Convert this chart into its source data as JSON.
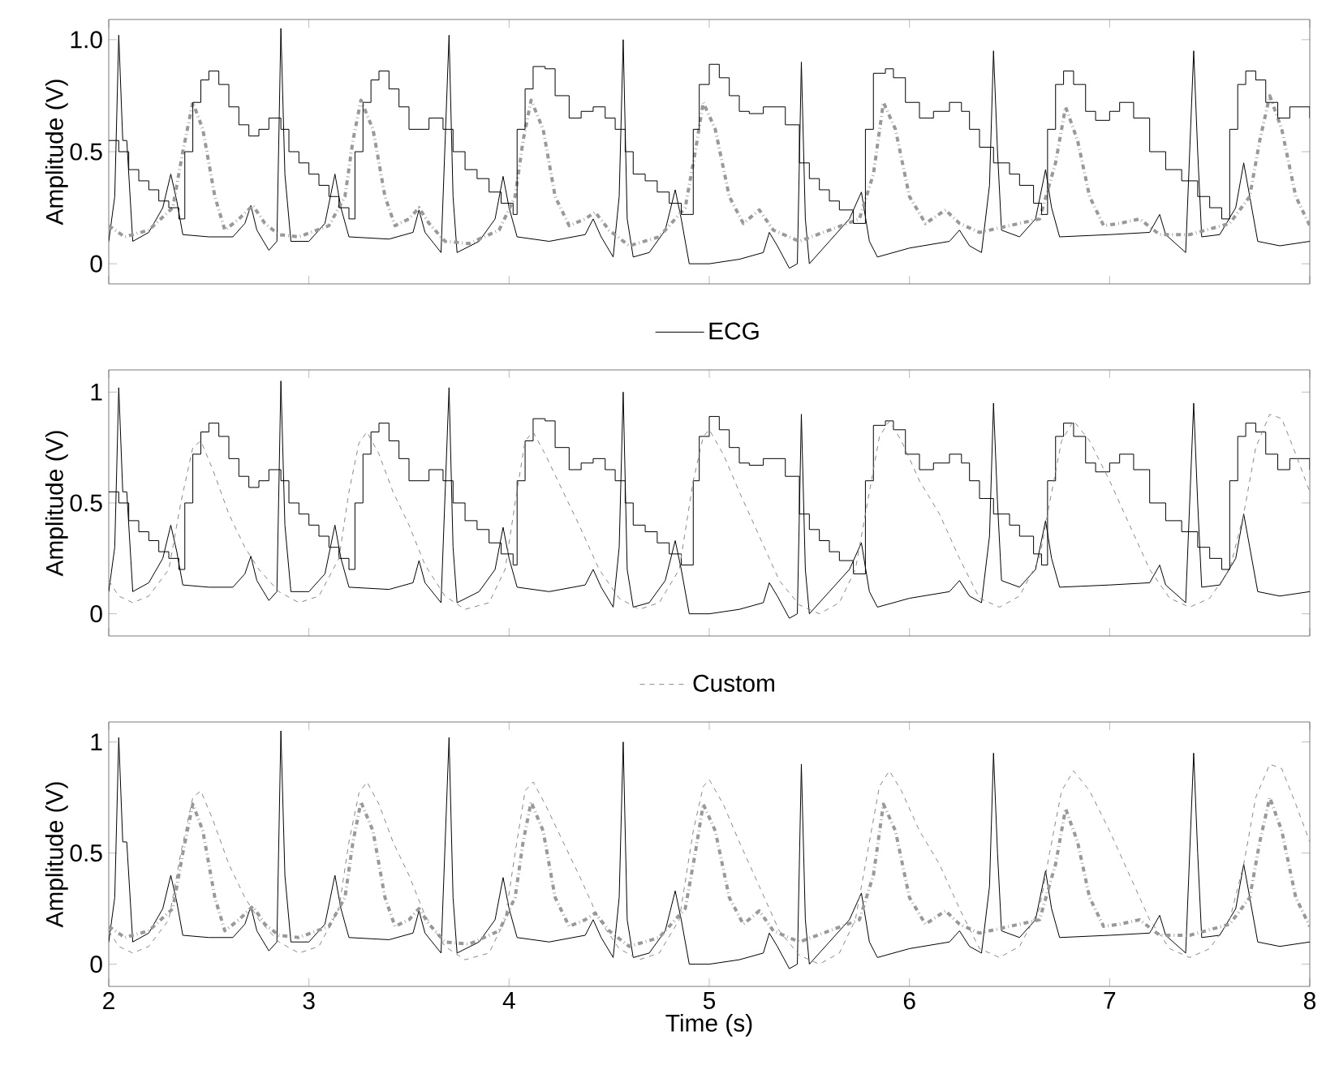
{
  "chart_data": [
    {
      "type": "line",
      "ylabel": "Amplitude (V)",
      "xlim": [
        2,
        8
      ],
      "ylim": [
        -0.09,
        1.09
      ],
      "xticks": [
        2,
        3,
        4,
        5,
        6,
        7,
        8
      ],
      "yticks": [
        0,
        0.5,
        {
          "value": 1,
          "label": "1.0"
        }
      ],
      "tick_labels": "y",
      "legend": "bottom",
      "series": [
        {
          "name": "ECG",
          "type": "line",
          "color": "#000000",
          "line_style": "solid",
          "x": [
            2.0,
            2.03,
            2.05,
            2.07,
            2.09,
            2.12,
            2.2,
            2.27,
            2.31,
            2.34,
            2.37,
            2.5,
            2.62,
            2.68,
            2.71,
            2.74,
            2.8,
            2.84,
            2.86,
            2.88,
            2.91,
            3.0,
            3.08,
            3.13,
            3.16,
            3.2,
            3.4,
            3.52,
            3.55,
            3.58,
            3.66,
            3.7,
            3.72,
            3.74,
            3.85,
            3.93,
            3.97,
            4.0,
            4.04,
            4.2,
            4.38,
            4.42,
            4.46,
            4.52,
            4.55,
            4.57,
            4.59,
            4.62,
            4.7,
            4.78,
            4.83,
            4.86,
            4.9,
            5.0,
            5.15,
            5.27,
            5.3,
            5.34,
            5.4,
            5.44,
            5.46,
            5.48,
            5.5,
            5.6,
            5.7,
            5.76,
            5.8,
            5.84,
            6.0,
            6.2,
            6.25,
            6.3,
            6.36,
            6.4,
            6.42,
            6.44,
            6.46,
            6.55,
            6.63,
            6.68,
            6.71,
            6.75,
            7.0,
            7.2,
            7.25,
            7.28,
            7.38,
            7.42,
            7.44,
            7.46,
            7.55,
            7.63,
            7.67,
            7.7,
            7.74,
            7.85,
            8.0
          ],
          "values": [
            0.1,
            0.3,
            1.02,
            0.55,
            0.55,
            0.1,
            0.14,
            0.25,
            0.4,
            0.28,
            0.13,
            0.12,
            0.12,
            0.18,
            0.26,
            0.15,
            0.06,
            0.1,
            1.05,
            0.4,
            0.1,
            0.1,
            0.18,
            0.4,
            0.25,
            0.12,
            0.11,
            0.14,
            0.24,
            0.14,
            0.05,
            1.02,
            0.3,
            0.05,
            0.1,
            0.2,
            0.39,
            0.25,
            0.12,
            0.1,
            0.13,
            0.2,
            0.12,
            0.03,
            0.3,
            1.0,
            0.2,
            0.03,
            0.05,
            0.15,
            0.33,
            0.2,
            0.0,
            0.0,
            0.02,
            0.05,
            0.14,
            0.08,
            -0.02,
            0.0,
            0.9,
            0.2,
            0.0,
            0.1,
            0.2,
            0.32,
            0.1,
            0.03,
            0.07,
            0.1,
            0.15,
            0.08,
            0.05,
            0.35,
            0.95,
            0.5,
            0.15,
            0.12,
            0.2,
            0.42,
            0.25,
            0.12,
            0.13,
            0.14,
            0.22,
            0.13,
            0.05,
            0.95,
            0.5,
            0.12,
            0.13,
            0.25,
            0.45,
            0.3,
            0.1,
            0.08,
            0.1
          ]
        },
        {
          "type": "line",
          "color": "#999999",
          "line_style": "dashdot",
          "x": [
            2.0,
            2.08,
            2.2,
            2.32,
            2.37,
            2.42,
            2.47,
            2.53,
            2.58,
            2.65,
            2.72,
            2.78,
            2.85,
            2.95,
            3.1,
            3.18,
            3.22,
            3.26,
            3.32,
            3.38,
            3.43,
            3.5,
            3.55,
            3.6,
            3.68,
            3.8,
            3.95,
            4.03,
            4.07,
            4.11,
            4.17,
            4.23,
            4.3,
            4.38,
            4.43,
            4.5,
            4.6,
            4.75,
            4.88,
            4.93,
            4.97,
            5.03,
            5.1,
            5.17,
            5.25,
            5.32,
            5.45,
            5.6,
            5.75,
            5.82,
            5.87,
            5.93,
            6.0,
            6.08,
            6.18,
            6.25,
            6.35,
            6.5,
            6.65,
            6.73,
            6.78,
            6.84,
            6.9,
            6.97,
            7.05,
            7.15,
            7.25,
            7.4,
            7.6,
            7.7,
            7.75,
            7.8,
            7.86,
            7.93,
            8.0
          ],
          "values": [
            0.17,
            0.12,
            0.15,
            0.25,
            0.5,
            0.72,
            0.6,
            0.3,
            0.15,
            0.2,
            0.26,
            0.18,
            0.13,
            0.12,
            0.17,
            0.3,
            0.55,
            0.73,
            0.6,
            0.3,
            0.17,
            0.2,
            0.25,
            0.18,
            0.1,
            0.09,
            0.15,
            0.3,
            0.55,
            0.73,
            0.6,
            0.3,
            0.17,
            0.2,
            0.23,
            0.15,
            0.08,
            0.12,
            0.25,
            0.5,
            0.72,
            0.6,
            0.3,
            0.18,
            0.24,
            0.15,
            0.1,
            0.15,
            0.2,
            0.4,
            0.72,
            0.6,
            0.3,
            0.18,
            0.24,
            0.18,
            0.14,
            0.17,
            0.2,
            0.45,
            0.7,
            0.55,
            0.3,
            0.17,
            0.18,
            0.2,
            0.13,
            0.13,
            0.18,
            0.3,
            0.55,
            0.75,
            0.6,
            0.3,
            0.17
          ]
        },
        {
          "type": "step",
          "color": "#000000",
          "line_style": "solid",
          "x": [
            2.0,
            2.05,
            2.1,
            2.15,
            2.2,
            2.25,
            2.3,
            2.35,
            2.38,
            2.42,
            2.46,
            2.5,
            2.55,
            2.6,
            2.65,
            2.7,
            2.75,
            2.8,
            2.86,
            2.9,
            2.95,
            3.0,
            3.05,
            3.1,
            3.15,
            3.2,
            3.23,
            3.27,
            3.31,
            3.35,
            3.4,
            3.45,
            3.5,
            3.55,
            3.6,
            3.67,
            3.72,
            3.78,
            3.84,
            3.9,
            3.96,
            4.02,
            4.04,
            4.08,
            4.12,
            4.18,
            4.23,
            4.3,
            4.36,
            4.42,
            4.48,
            4.53,
            4.58,
            4.62,
            4.68,
            4.74,
            4.8,
            4.86,
            4.92,
            4.95,
            5.0,
            5.05,
            5.1,
            5.15,
            5.2,
            5.27,
            5.32,
            5.38,
            5.45,
            5.5,
            5.55,
            5.6,
            5.65,
            5.72,
            5.78,
            5.82,
            5.88,
            5.92,
            5.98,
            6.05,
            6.12,
            6.2,
            6.26,
            6.3,
            6.35,
            6.42,
            6.5,
            6.55,
            6.62,
            6.66,
            6.69,
            6.73,
            6.77,
            6.82,
            6.88,
            6.93,
            7.0,
            7.05,
            7.12,
            7.2,
            7.28,
            7.36,
            7.44,
            7.5,
            7.56,
            7.6,
            7.64,
            7.68,
            7.73,
            7.78,
            7.84,
            7.9,
            7.96,
            8.0
          ],
          "values": [
            0.55,
            0.5,
            0.42,
            0.37,
            0.33,
            0.28,
            0.25,
            0.2,
            0.5,
            0.72,
            0.82,
            0.86,
            0.8,
            0.7,
            0.62,
            0.57,
            0.6,
            0.65,
            0.6,
            0.5,
            0.45,
            0.4,
            0.35,
            0.3,
            0.25,
            0.2,
            0.5,
            0.72,
            0.82,
            0.86,
            0.78,
            0.7,
            0.6,
            0.6,
            0.65,
            0.6,
            0.5,
            0.42,
            0.38,
            0.32,
            0.27,
            0.22,
            0.6,
            0.78,
            0.88,
            0.87,
            0.75,
            0.65,
            0.68,
            0.7,
            0.65,
            0.6,
            0.5,
            0.4,
            0.37,
            0.32,
            0.27,
            0.22,
            0.6,
            0.8,
            0.89,
            0.83,
            0.75,
            0.68,
            0.67,
            0.7,
            0.7,
            0.62,
            0.45,
            0.38,
            0.33,
            0.28,
            0.24,
            0.18,
            0.6,
            0.85,
            0.87,
            0.83,
            0.72,
            0.65,
            0.68,
            0.72,
            0.68,
            0.6,
            0.52,
            0.45,
            0.4,
            0.35,
            0.27,
            0.22,
            0.6,
            0.8,
            0.86,
            0.8,
            0.68,
            0.64,
            0.68,
            0.72,
            0.65,
            0.5,
            0.42,
            0.37,
            0.3,
            0.25,
            0.2,
            0.6,
            0.8,
            0.86,
            0.82,
            0.72,
            0.65,
            0.7,
            0.7,
            0.65
          ]
        }
      ]
    },
    {
      "type": "line",
      "ylabel": "Amplitude (V)",
      "xlim": [
        2,
        8
      ],
      "ylim": [
        -0.1,
        1.1
      ],
      "xticks": [
        2,
        3,
        4,
        5,
        6,
        7,
        8
      ],
      "yticks": [
        0,
        0.5,
        1
      ],
      "tick_labels": "y",
      "legend": "bottom",
      "series": [
        {
          "type": "line",
          "color": "#000000",
          "line_style": "solid",
          "x": [
            2.0,
            2.03,
            2.05,
            2.07,
            2.09,
            2.12,
            2.2,
            2.27,
            2.31,
            2.34,
            2.37,
            2.5,
            2.62,
            2.68,
            2.71,
            2.74,
            2.8,
            2.84,
            2.86,
            2.88,
            2.91,
            3.0,
            3.08,
            3.13,
            3.16,
            3.2,
            3.4,
            3.52,
            3.55,
            3.58,
            3.66,
            3.7,
            3.72,
            3.74,
            3.85,
            3.93,
            3.97,
            4.0,
            4.04,
            4.2,
            4.38,
            4.42,
            4.46,
            4.52,
            4.55,
            4.57,
            4.59,
            4.62,
            4.7,
            4.78,
            4.83,
            4.86,
            4.9,
            5.0,
            5.15,
            5.27,
            5.3,
            5.34,
            5.4,
            5.44,
            5.46,
            5.48,
            5.5,
            5.6,
            5.7,
            5.76,
            5.8,
            5.84,
            6.0,
            6.2,
            6.25,
            6.3,
            6.36,
            6.4,
            6.42,
            6.44,
            6.46,
            6.55,
            6.63,
            6.68,
            6.71,
            6.75,
            7.0,
            7.2,
            7.25,
            7.28,
            7.38,
            7.42,
            7.44,
            7.46,
            7.55,
            7.63,
            7.67,
            7.7,
            7.74,
            7.85,
            8.0
          ],
          "values": [
            0.1,
            0.3,
            1.02,
            0.55,
            0.55,
            0.1,
            0.14,
            0.25,
            0.4,
            0.28,
            0.13,
            0.12,
            0.12,
            0.18,
            0.26,
            0.15,
            0.06,
            0.1,
            1.05,
            0.4,
            0.1,
            0.1,
            0.18,
            0.4,
            0.25,
            0.12,
            0.11,
            0.14,
            0.24,
            0.14,
            0.05,
            1.02,
            0.3,
            0.05,
            0.1,
            0.2,
            0.39,
            0.25,
            0.12,
            0.1,
            0.13,
            0.2,
            0.12,
            0.03,
            0.3,
            1.0,
            0.2,
            0.03,
            0.05,
            0.15,
            0.33,
            0.2,
            0.0,
            0.0,
            0.02,
            0.05,
            0.14,
            0.08,
            -0.02,
            0.0,
            0.9,
            0.2,
            0.0,
            0.1,
            0.2,
            0.32,
            0.1,
            0.03,
            0.07,
            0.1,
            0.15,
            0.08,
            0.05,
            0.35,
            0.95,
            0.5,
            0.15,
            0.12,
            0.2,
            0.42,
            0.25,
            0.12,
            0.13,
            0.14,
            0.22,
            0.13,
            0.05,
            0.95,
            0.5,
            0.12,
            0.13,
            0.25,
            0.45,
            0.3,
            0.1,
            0.08,
            0.1
          ]
        },
        {
          "type": "step",
          "color": "#000000",
          "line_style": "solid",
          "x": [
            2.0,
            2.05,
            2.1,
            2.15,
            2.2,
            2.25,
            2.3,
            2.35,
            2.38,
            2.42,
            2.46,
            2.5,
            2.55,
            2.6,
            2.65,
            2.7,
            2.75,
            2.8,
            2.86,
            2.9,
            2.95,
            3.0,
            3.05,
            3.1,
            3.15,
            3.2,
            3.23,
            3.27,
            3.31,
            3.35,
            3.4,
            3.45,
            3.5,
            3.55,
            3.6,
            3.67,
            3.72,
            3.78,
            3.84,
            3.9,
            3.96,
            4.02,
            4.04,
            4.08,
            4.12,
            4.18,
            4.23,
            4.3,
            4.36,
            4.42,
            4.48,
            4.53,
            4.58,
            4.62,
            4.68,
            4.74,
            4.8,
            4.86,
            4.92,
            4.95,
            5.0,
            5.05,
            5.1,
            5.15,
            5.2,
            5.27,
            5.32,
            5.38,
            5.45,
            5.5,
            5.55,
            5.6,
            5.65,
            5.72,
            5.78,
            5.82,
            5.88,
            5.92,
            5.98,
            6.05,
            6.12,
            6.2,
            6.26,
            6.3,
            6.35,
            6.42,
            6.5,
            6.55,
            6.62,
            6.66,
            6.69,
            6.73,
            6.77,
            6.82,
            6.88,
            6.93,
            7.0,
            7.05,
            7.12,
            7.2,
            7.28,
            7.36,
            7.44,
            7.5,
            7.56,
            7.6,
            7.64,
            7.68,
            7.73,
            7.78,
            7.84,
            7.9,
            7.96,
            8.0
          ],
          "values": [
            0.55,
            0.5,
            0.42,
            0.37,
            0.33,
            0.28,
            0.25,
            0.2,
            0.5,
            0.72,
            0.82,
            0.86,
            0.8,
            0.7,
            0.62,
            0.57,
            0.6,
            0.65,
            0.6,
            0.5,
            0.45,
            0.4,
            0.35,
            0.3,
            0.25,
            0.2,
            0.5,
            0.72,
            0.82,
            0.86,
            0.78,
            0.7,
            0.6,
            0.6,
            0.65,
            0.6,
            0.5,
            0.42,
            0.38,
            0.32,
            0.27,
            0.22,
            0.6,
            0.78,
            0.88,
            0.87,
            0.75,
            0.65,
            0.68,
            0.7,
            0.65,
            0.6,
            0.5,
            0.4,
            0.37,
            0.32,
            0.27,
            0.22,
            0.6,
            0.8,
            0.89,
            0.83,
            0.75,
            0.68,
            0.67,
            0.7,
            0.7,
            0.62,
            0.45,
            0.38,
            0.33,
            0.28,
            0.24,
            0.18,
            0.6,
            0.85,
            0.87,
            0.83,
            0.72,
            0.65,
            0.68,
            0.72,
            0.68,
            0.6,
            0.52,
            0.45,
            0.4,
            0.35,
            0.27,
            0.22,
            0.6,
            0.8,
            0.86,
            0.8,
            0.68,
            0.64,
            0.68,
            0.72,
            0.65,
            0.5,
            0.42,
            0.37,
            0.3,
            0.25,
            0.2,
            0.6,
            0.8,
            0.86,
            0.82,
            0.72,
            0.65,
            0.7,
            0.7,
            0.65
          ]
        },
        {
          "name": "Custom",
          "type": "line",
          "color": "#888888",
          "line_style": "dashed",
          "x": [
            2.0,
            2.05,
            2.12,
            2.2,
            2.3,
            2.36,
            2.42,
            2.46,
            2.52,
            2.6,
            2.68,
            2.75,
            2.85,
            2.95,
            3.05,
            3.15,
            3.2,
            3.25,
            3.29,
            3.35,
            3.42,
            3.5,
            3.58,
            3.68,
            3.78,
            3.9,
            3.98,
            4.03,
            4.08,
            4.12,
            4.18,
            4.27,
            4.35,
            4.45,
            4.55,
            4.65,
            4.75,
            4.85,
            4.92,
            4.97,
            5.0,
            5.07,
            5.15,
            5.25,
            5.35,
            5.45,
            5.55,
            5.65,
            5.73,
            5.8,
            5.85,
            5.9,
            5.96,
            6.05,
            6.15,
            6.25,
            6.35,
            6.45,
            6.55,
            6.65,
            6.7,
            6.76,
            6.82,
            6.9,
            7.0,
            7.1,
            7.2,
            7.3,
            7.4,
            7.5,
            7.6,
            7.67,
            7.73,
            7.8,
            7.86,
            7.93,
            8.0
          ],
          "values": [
            0.15,
            0.08,
            0.05,
            0.08,
            0.2,
            0.5,
            0.75,
            0.78,
            0.65,
            0.45,
            0.3,
            0.2,
            0.1,
            0.05,
            0.08,
            0.25,
            0.55,
            0.77,
            0.82,
            0.72,
            0.55,
            0.4,
            0.22,
            0.08,
            0.02,
            0.05,
            0.2,
            0.5,
            0.78,
            0.82,
            0.72,
            0.55,
            0.4,
            0.2,
            0.07,
            0.02,
            0.05,
            0.2,
            0.6,
            0.8,
            0.83,
            0.72,
            0.55,
            0.35,
            0.15,
            0.04,
            0.0,
            0.05,
            0.2,
            0.55,
            0.8,
            0.87,
            0.78,
            0.6,
            0.45,
            0.25,
            0.07,
            0.03,
            0.08,
            0.25,
            0.5,
            0.78,
            0.87,
            0.78,
            0.6,
            0.4,
            0.2,
            0.07,
            0.03,
            0.07,
            0.2,
            0.45,
            0.75,
            0.9,
            0.88,
            0.72,
            0.55
          ]
        }
      ]
    },
    {
      "type": "line",
      "xlabel": "Time (s)",
      "ylabel": "Amplitude (V)",
      "xlim": [
        2,
        8
      ],
      "ylim": [
        -0.1,
        1.09
      ],
      "xticks": [
        2,
        3,
        4,
        5,
        6,
        7,
        8
      ],
      "yticks": [
        0,
        0.5,
        1
      ],
      "series": [
        {
          "type": "line",
          "color": "#000000",
          "line_style": "solid",
          "x": [
            2.0,
            2.03,
            2.05,
            2.07,
            2.09,
            2.12,
            2.2,
            2.27,
            2.31,
            2.34,
            2.37,
            2.5,
            2.62,
            2.68,
            2.71,
            2.74,
            2.8,
            2.84,
            2.86,
            2.88,
            2.91,
            3.0,
            3.08,
            3.13,
            3.16,
            3.2,
            3.4,
            3.52,
            3.55,
            3.58,
            3.66,
            3.7,
            3.72,
            3.74,
            3.85,
            3.93,
            3.97,
            4.0,
            4.04,
            4.2,
            4.38,
            4.42,
            4.46,
            4.52,
            4.55,
            4.57,
            4.59,
            4.62,
            4.7,
            4.78,
            4.83,
            4.86,
            4.9,
            5.0,
            5.15,
            5.27,
            5.3,
            5.34,
            5.4,
            5.44,
            5.46,
            5.48,
            5.5,
            5.6,
            5.7,
            5.76,
            5.8,
            5.84,
            6.0,
            6.2,
            6.25,
            6.3,
            6.36,
            6.4,
            6.42,
            6.44,
            6.46,
            6.55,
            6.63,
            6.68,
            6.71,
            6.75,
            7.0,
            7.2,
            7.25,
            7.28,
            7.38,
            7.42,
            7.44,
            7.46,
            7.55,
            7.63,
            7.67,
            7.7,
            7.74,
            7.85,
            8.0
          ],
          "values": [
            0.1,
            0.3,
            1.02,
            0.55,
            0.55,
            0.1,
            0.14,
            0.25,
            0.4,
            0.28,
            0.13,
            0.12,
            0.12,
            0.18,
            0.26,
            0.15,
            0.06,
            0.1,
            1.05,
            0.4,
            0.1,
            0.1,
            0.18,
            0.4,
            0.25,
            0.12,
            0.11,
            0.14,
            0.24,
            0.14,
            0.05,
            1.02,
            0.3,
            0.05,
            0.1,
            0.2,
            0.39,
            0.25,
            0.12,
            0.1,
            0.13,
            0.2,
            0.12,
            0.03,
            0.3,
            1.0,
            0.2,
            0.03,
            0.05,
            0.15,
            0.33,
            0.2,
            0.0,
            0.0,
            0.02,
            0.05,
            0.14,
            0.08,
            -0.02,
            0.0,
            0.9,
            0.2,
            0.0,
            0.1,
            0.2,
            0.32,
            0.1,
            0.03,
            0.07,
            0.1,
            0.15,
            0.08,
            0.05,
            0.35,
            0.95,
            0.5,
            0.15,
            0.12,
            0.2,
            0.42,
            0.25,
            0.12,
            0.13,
            0.14,
            0.22,
            0.13,
            0.05,
            0.95,
            0.5,
            0.12,
            0.13,
            0.25,
            0.45,
            0.3,
            0.1,
            0.08,
            0.1
          ]
        },
        {
          "type": "line",
          "color": "#999999",
          "line_style": "dashdot",
          "x": [
            2.0,
            2.08,
            2.2,
            2.32,
            2.37,
            2.42,
            2.47,
            2.53,
            2.58,
            2.65,
            2.72,
            2.78,
            2.85,
            2.95,
            3.1,
            3.18,
            3.22,
            3.26,
            3.32,
            3.38,
            3.43,
            3.5,
            3.55,
            3.6,
            3.68,
            3.8,
            3.95,
            4.03,
            4.07,
            4.11,
            4.17,
            4.23,
            4.3,
            4.38,
            4.43,
            4.5,
            4.6,
            4.75,
            4.88,
            4.93,
            4.97,
            5.03,
            5.1,
            5.17,
            5.25,
            5.32,
            5.45,
            5.6,
            5.75,
            5.82,
            5.87,
            5.93,
            6.0,
            6.08,
            6.18,
            6.25,
            6.35,
            6.5,
            6.65,
            6.73,
            6.78,
            6.84,
            6.9,
            6.97,
            7.05,
            7.15,
            7.25,
            7.4,
            7.6,
            7.7,
            7.75,
            7.8,
            7.86,
            7.93,
            8.0
          ],
          "values": [
            0.17,
            0.12,
            0.15,
            0.25,
            0.5,
            0.72,
            0.6,
            0.3,
            0.15,
            0.2,
            0.26,
            0.18,
            0.13,
            0.12,
            0.17,
            0.3,
            0.55,
            0.73,
            0.6,
            0.3,
            0.17,
            0.2,
            0.25,
            0.18,
            0.1,
            0.09,
            0.15,
            0.3,
            0.55,
            0.73,
            0.6,
            0.3,
            0.17,
            0.2,
            0.23,
            0.15,
            0.08,
            0.12,
            0.25,
            0.5,
            0.72,
            0.6,
            0.3,
            0.18,
            0.24,
            0.15,
            0.1,
            0.15,
            0.2,
            0.4,
            0.72,
            0.6,
            0.3,
            0.18,
            0.24,
            0.18,
            0.14,
            0.17,
            0.2,
            0.45,
            0.7,
            0.55,
            0.3,
            0.17,
            0.18,
            0.2,
            0.13,
            0.13,
            0.18,
            0.3,
            0.55,
            0.75,
            0.6,
            0.3,
            0.17
          ]
        },
        {
          "type": "line",
          "color": "#888888",
          "line_style": "dashed",
          "x": [
            2.0,
            2.05,
            2.12,
            2.2,
            2.3,
            2.36,
            2.42,
            2.46,
            2.52,
            2.6,
            2.68,
            2.75,
            2.85,
            2.95,
            3.05,
            3.15,
            3.2,
            3.25,
            3.29,
            3.35,
            3.42,
            3.5,
            3.58,
            3.68,
            3.78,
            3.9,
            3.98,
            4.03,
            4.08,
            4.12,
            4.18,
            4.27,
            4.35,
            4.45,
            4.55,
            4.65,
            4.75,
            4.85,
            4.92,
            4.97,
            5.0,
            5.07,
            5.15,
            5.25,
            5.35,
            5.45,
            5.55,
            5.65,
            5.73,
            5.8,
            5.85,
            5.9,
            5.96,
            6.05,
            6.15,
            6.25,
            6.35,
            6.45,
            6.55,
            6.65,
            6.7,
            6.76,
            6.82,
            6.9,
            7.0,
            7.1,
            7.2,
            7.3,
            7.4,
            7.5,
            7.6,
            7.67,
            7.73,
            7.8,
            7.86,
            7.93,
            8.0
          ],
          "values": [
            0.15,
            0.08,
            0.05,
            0.08,
            0.2,
            0.5,
            0.75,
            0.78,
            0.65,
            0.45,
            0.3,
            0.2,
            0.1,
            0.05,
            0.08,
            0.25,
            0.55,
            0.77,
            0.82,
            0.72,
            0.55,
            0.4,
            0.22,
            0.08,
            0.02,
            0.05,
            0.2,
            0.5,
            0.78,
            0.82,
            0.72,
            0.55,
            0.4,
            0.2,
            0.07,
            0.02,
            0.05,
            0.2,
            0.6,
            0.8,
            0.83,
            0.72,
            0.55,
            0.35,
            0.15,
            0.04,
            0.0,
            0.05,
            0.2,
            0.55,
            0.8,
            0.87,
            0.78,
            0.6,
            0.45,
            0.25,
            0.07,
            0.03,
            0.08,
            0.25,
            0.5,
            0.78,
            0.87,
            0.78,
            0.6,
            0.4,
            0.2,
            0.07,
            0.03,
            0.07,
            0.2,
            0.45,
            0.75,
            0.9,
            0.88,
            0.72,
            0.55
          ]
        }
      ]
    }
  ]
}
